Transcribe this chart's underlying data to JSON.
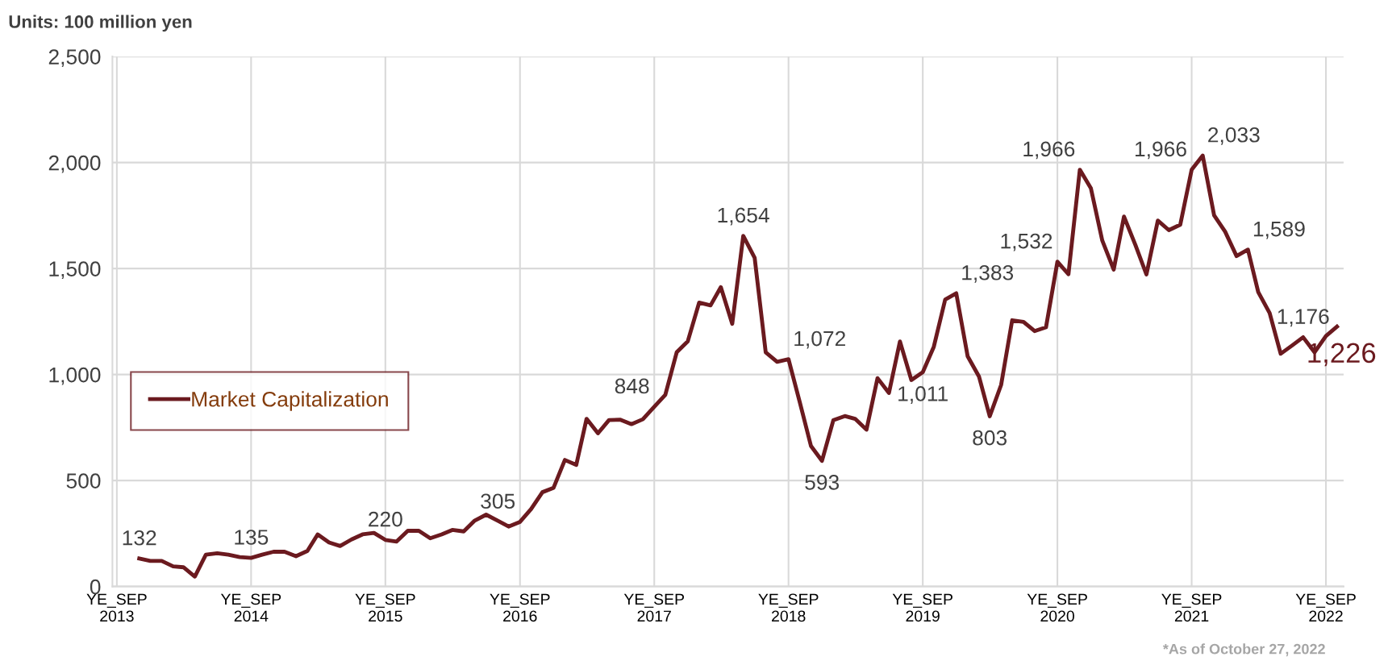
{
  "chart_data": {
    "type": "line",
    "title": "Units: 100 million yen",
    "x": [
      "2013-11",
      "2013-12",
      "2014-01",
      "2014-02",
      "2014-03",
      "2014-04",
      "2014-05",
      "2014-06",
      "2014-07",
      "2014-08",
      "2014-09",
      "2014-10",
      "2014-11",
      "2014-12",
      "2015-01",
      "2015-02",
      "2015-03",
      "2015-04",
      "2015-05",
      "2015-06",
      "2015-07",
      "2015-08",
      "2015-09",
      "2015-10",
      "2015-11",
      "2015-12",
      "2016-01",
      "2016-02",
      "2016-03",
      "2016-04",
      "2016-05",
      "2016-06",
      "2016-07",
      "2016-08",
      "2016-09",
      "2016-10",
      "2016-11",
      "2016-12",
      "2017-01",
      "2017-02",
      "2017-03",
      "2017-04",
      "2017-05",
      "2017-06",
      "2017-07",
      "2017-08",
      "2017-09",
      "2017-10",
      "2017-11",
      "2017-12",
      "2018-01",
      "2018-02",
      "2018-03",
      "2018-04",
      "2018-05",
      "2018-06",
      "2018-07",
      "2018-08",
      "2018-09",
      "2018-10",
      "2018-11",
      "2018-12",
      "2019-01",
      "2019-02",
      "2019-03",
      "2019-04",
      "2019-05",
      "2019-06",
      "2019-07",
      "2019-08",
      "2019-09",
      "2019-10",
      "2019-11",
      "2019-12",
      "2020-01",
      "2020-02",
      "2020-03",
      "2020-04",
      "2020-05",
      "2020-06",
      "2020-07",
      "2020-08",
      "2020-09",
      "2020-10",
      "2020-11",
      "2020-12",
      "2021-01",
      "2021-02",
      "2021-03",
      "2021-04",
      "2021-05",
      "2021-06",
      "2021-07",
      "2021-08",
      "2021-09",
      "2021-10",
      "2021-11",
      "2021-12",
      "2022-01",
      "2022-02",
      "2022-03",
      "2022-04",
      "2022-05",
      "2022-06",
      "2022-07",
      "2022-08",
      "2022-09",
      "2022-10"
    ],
    "series": [
      {
        "name": "Market Capitalization",
        "color": "#6b1a1f",
        "values": [
          132,
          121,
          121,
          95,
          91,
          47,
          150,
          157,
          150,
          139,
          135,
          150,
          164,
          164,
          143,
          168,
          246,
          208,
          191,
          222,
          246,
          253,
          220,
          212,
          263,
          263,
          228,
          246,
          267,
          260,
          311,
          339,
          312,
          283,
          305,
          365,
          445,
          465,
          597,
          574,
          791,
          723,
          785,
          787,
          766,
          789,
          848,
          904,
          1105,
          1156,
          1339,
          1326,
          1412,
          1239,
          1654,
          1550,
          1105,
          1060,
          1072,
          874,
          663,
          593,
          785,
          804,
          791,
          740,
          983,
          913,
          1156,
          974,
          1011,
          1131,
          1354,
          1383,
          1086,
          990,
          803,
          951,
          1256,
          1248,
          1205,
          1223,
          1532,
          1473,
          1966,
          1879,
          1632,
          1495,
          1745,
          1611,
          1472,
          1726,
          1681,
          1707,
          1966,
          2033,
          1751,
          1674,
          1559,
          1589,
          1389,
          1290,
          1098,
          1137,
          1176,
          1105,
          1182,
          1226
        ],
        "value_labels": [
          "132",
          null,
          null,
          null,
          null,
          null,
          null,
          null,
          null,
          null,
          "135",
          null,
          null,
          null,
          null,
          null,
          null,
          null,
          null,
          null,
          null,
          null,
          "220",
          null,
          null,
          null,
          null,
          null,
          null,
          null,
          null,
          null,
          null,
          null,
          "305",
          null,
          null,
          null,
          null,
          null,
          null,
          null,
          null,
          null,
          null,
          null,
          "848",
          null,
          null,
          null,
          null,
          null,
          null,
          null,
          "1,654",
          null,
          null,
          null,
          "1,072",
          null,
          null,
          "593",
          null,
          null,
          null,
          null,
          null,
          null,
          null,
          null,
          "1,011",
          null,
          null,
          "1,383",
          null,
          null,
          "803",
          null,
          null,
          null,
          null,
          null,
          "1,532",
          null,
          "1,966",
          null,
          null,
          null,
          null,
          null,
          null,
          null,
          null,
          null,
          "1,966",
          "2,033",
          null,
          null,
          null,
          "1,589",
          null,
          null,
          null,
          null,
          "1,176",
          null,
          null,
          "1,226"
        ]
      }
    ],
    "xlim": [
      "2013-08-20",
      "2022-10-19"
    ],
    "xticks": [
      {
        "value": "2013-09",
        "label": "YE_SEP\n2013"
      },
      {
        "value": "2014-09",
        "label": "YE_SEP\n2014"
      },
      {
        "value": "2015-09",
        "label": "YE_SEP\n2015"
      },
      {
        "value": "2016-09",
        "label": "YE_SEP\n2016"
      },
      {
        "value": "2017-09",
        "label": "YE_SEP\n2017"
      },
      {
        "value": "2018-09",
        "label": "YE_SEP\n2018"
      },
      {
        "value": "2019-09",
        "label": "YE_SEP\n2019"
      },
      {
        "value": "2020-09",
        "label": "YE_SEP\n2020"
      },
      {
        "value": "2021-09",
        "label": "YE_SEP\n2021"
      },
      {
        "value": "2022-09",
        "label": "YE_SEP\n2022"
      }
    ],
    "ylim": [
      0,
      2500
    ],
    "yticks": [
      0,
      {
        "value": 500,
        "label": "500"
      },
      {
        "value": 1000,
        "label": "1,000"
      },
      {
        "value": 1500,
        "label": "1,500"
      },
      {
        "value": 2000,
        "label": "2,000"
      },
      {
        "value": 2500,
        "label": "2,500"
      }
    ],
    "grid": true,
    "legend": "left",
    "marker": "none",
    "line_style": "solid",
    "annotations": [
      "*As of October 27, 2022"
    ]
  }
}
